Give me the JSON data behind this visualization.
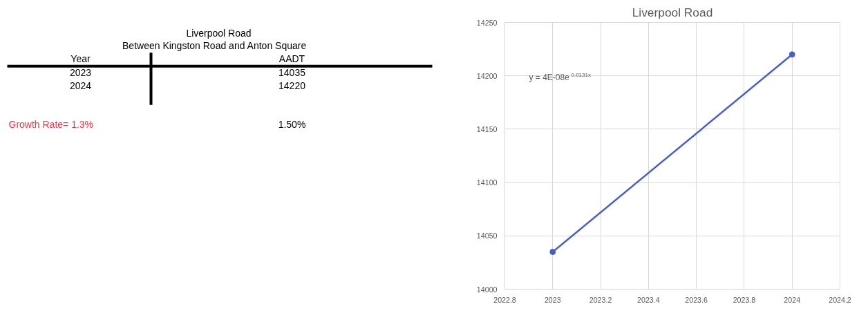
{
  "chart_data": [
    {
      "type": "other",
      "title": "Liverpool Road",
      "subtitle": "Between Kingston Road and Anton Square",
      "xlabel": "Year",
      "ylabel": "AADT",
      "categories": [
        "2023",
        "2024"
      ],
      "values": [
        14035,
        14220
      ],
      "data_labels": true,
      "annotations": [
        "Growth Rate= 1.3%",
        "1.50%"
      ]
    },
    {
      "type": "line",
      "title": "Liverpool Road",
      "x": [
        2023,
        2024
      ],
      "series": [
        {
          "color": "#4a5fc1",
          "values": [
            14035,
            14220
          ]
        }
      ],
      "marker": "circle",
      "grid": true,
      "xlim": [
        2022.8,
        2024.2
      ],
      "xticks": [
        2022.8,
        2023,
        2023.2,
        2023.4,
        2023.6,
        2023.8,
        2024,
        2024.2
      ],
      "ylim": [
        14000,
        14250
      ],
      "yticks": [
        14000,
        14050,
        14100,
        14150,
        14200,
        14250
      ],
      "annotations": [
        "y = 4E-08e$^{0.0131x}$"
      ]
    }
  ]
}
